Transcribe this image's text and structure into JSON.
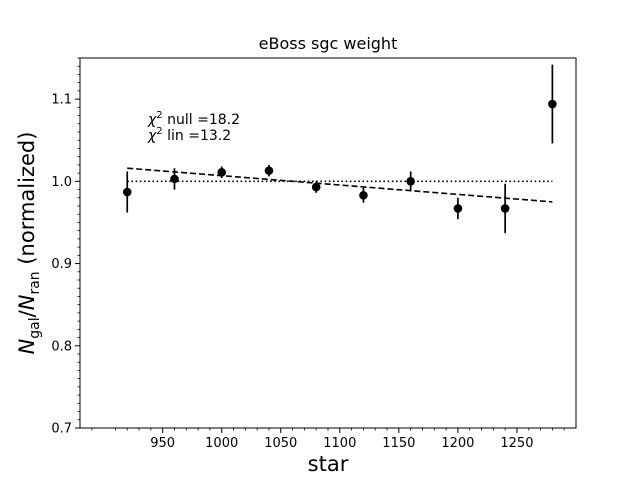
{
  "chart_data": {
    "type": "scatter",
    "title": "eBoss sgc weight",
    "xlabel": "star",
    "ylabel": {
      "base_n": "N",
      "sub_num": "gal",
      "sep": "/",
      "sub_den": "ran",
      "suffix": " (normalized)"
    },
    "xlim": [
      880,
      1300
    ],
    "ylim": [
      0.7,
      1.15
    ],
    "xticks": [
      950,
      1000,
      1050,
      1100,
      1150,
      1200,
      1250
    ],
    "yticks": [
      0.7,
      0.8,
      0.9,
      1.0,
      1.1
    ],
    "xtick_labels": [
      "950",
      "1000",
      "1050",
      "1100",
      "1150",
      "1200",
      "1250"
    ],
    "ytick_labels": [
      "0.7",
      "0.8",
      "0.9",
      "1.0",
      "1.1"
    ],
    "grid": false,
    "series": [
      {
        "x": [
          920,
          960,
          1000,
          1040,
          1080,
          1120,
          1160,
          1200,
          1240,
          1280
        ],
        "y": [
          0.987,
          1.003,
          1.011,
          1.013,
          0.993,
          0.983,
          1.0,
          0.967,
          0.967,
          1.094
        ],
        "yerr": [
          0.025,
          0.013,
          0.007,
          0.007,
          0.007,
          0.009,
          0.012,
          0.013,
          0.03,
          0.048
        ],
        "color": "#000000"
      }
    ],
    "null_line": {
      "x": [
        920,
        1280
      ],
      "y": [
        1.0,
        1.0
      ],
      "style": "dotted"
    },
    "linear_fit": {
      "x": [
        920,
        1280
      ],
      "y": [
        1.016,
        0.975
      ],
      "style": "dashed"
    },
    "annotations": [
      {
        "chi": "χ",
        "sup": "2",
        "text": " null =18.2"
      },
      {
        "chi": "χ",
        "sup": "2",
        "text": " lin =13.2"
      }
    ]
  }
}
